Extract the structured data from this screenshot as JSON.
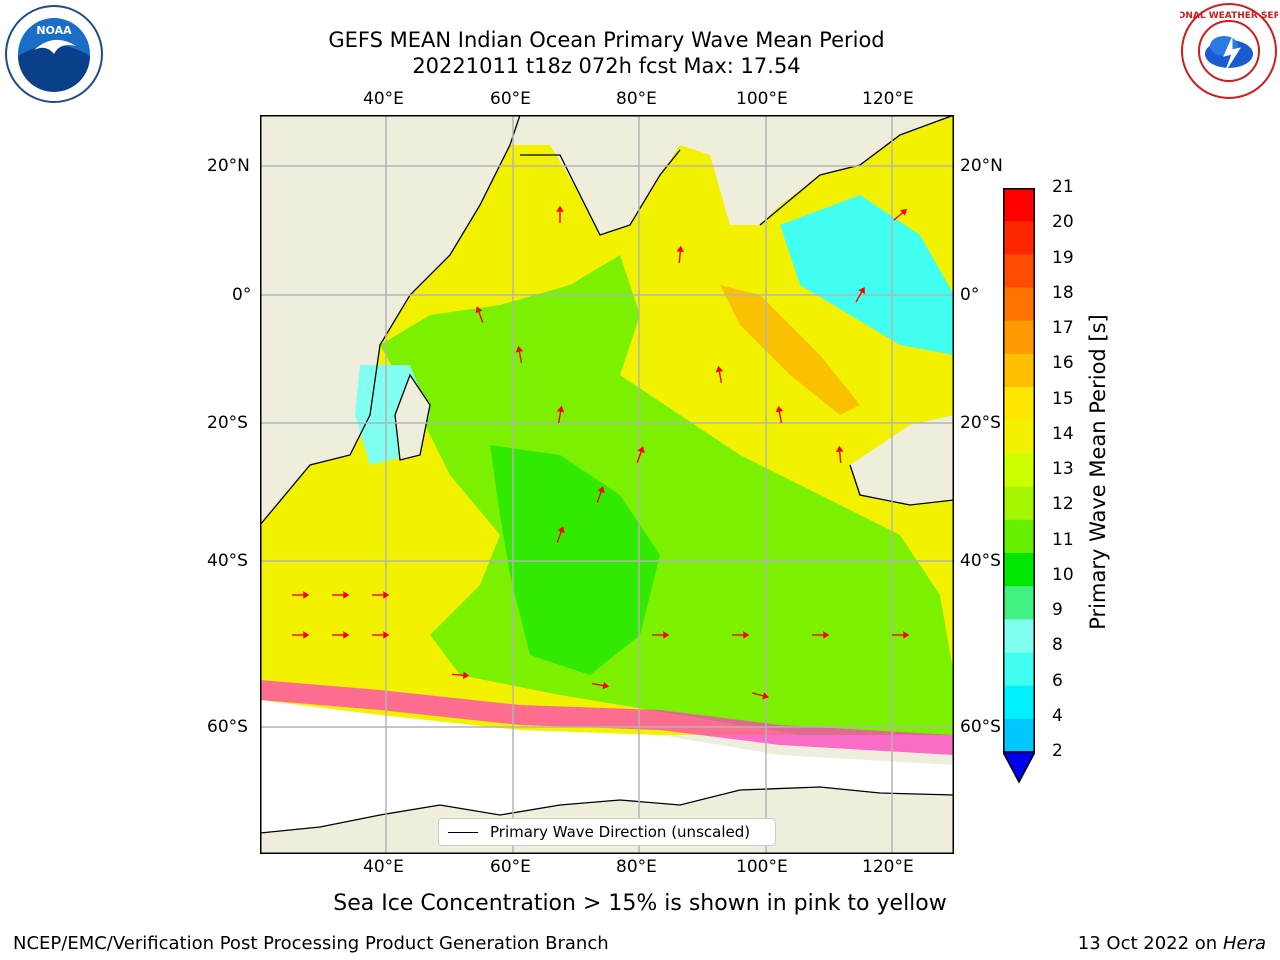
{
  "title": {
    "line1": "GEFS MEAN Indian Ocean Primary Wave Mean Period",
    "line2": "20221011 t18z 072h fcst   Max: 17.54"
  },
  "map": {
    "lon_ticks": [
      "40°E",
      "60°E",
      "80°E",
      "100°E",
      "120°E"
    ],
    "lat_ticks": [
      "20°N",
      "0°",
      "20°S",
      "40°S",
      "60°S"
    ],
    "legend_label": "Primary Wave Direction (unscaled)"
  },
  "colorbar": {
    "label": "Primary Wave Mean Period [s]",
    "tick_labels": [
      "21",
      "20",
      "19",
      "18",
      "17",
      "16",
      "15",
      "14",
      "13",
      "12",
      "11",
      "10",
      "9",
      "8",
      "6",
      "4",
      "2"
    ],
    "colors": [
      "#ff0000",
      "#ff2600",
      "#ff4c00",
      "#ff7300",
      "#ff9900",
      "#ffbf00",
      "#ffe600",
      "#f2f200",
      "#ccff00",
      "#a6f500",
      "#66f000",
      "#00e600",
      "#40f080",
      "#80fff0",
      "#40fff0",
      "#00f0ff",
      "#00c8ff",
      "#0080ff"
    ],
    "extend_color": "#0000f0"
  },
  "logos": {
    "noaa_text": "NOAA",
    "nws_text": "NATIONAL WEATHER SERVICE"
  },
  "note": "Sea Ice Concentration > 15% is shown in pink to yellow",
  "footer": {
    "left": "NCEP/EMC/Verification Post Processing Product Generation Branch",
    "date": "13 Oct 2022 on ",
    "machine": "Hera"
  }
}
